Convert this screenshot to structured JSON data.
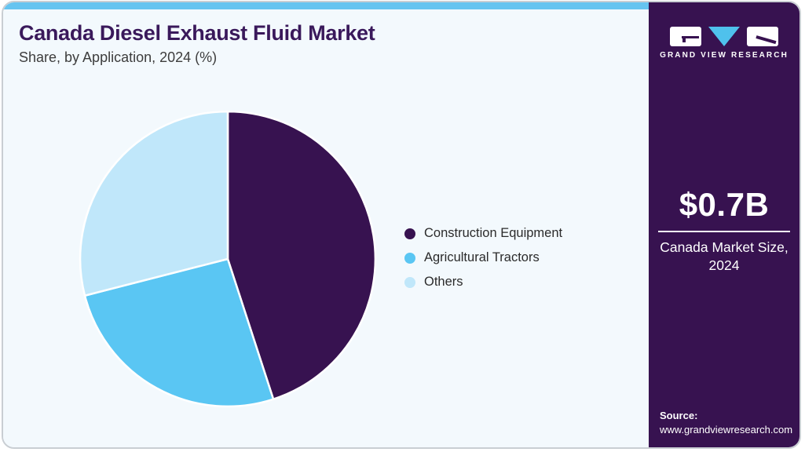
{
  "header": {
    "title": "Canada Diesel Exhaust Fluid Market",
    "subtitle": "Share, by Application, 2024 (%)"
  },
  "chart_data": {
    "type": "pie",
    "title": "Canada Diesel Exhaust Fluid Market Share, by Application, 2024 (%)",
    "units": "%",
    "start_angle_deg": 0,
    "direction": "clockwise",
    "legend_position": "right",
    "slices": [
      {
        "label": "Construction Equipment",
        "value": 45,
        "color": "#371250"
      },
      {
        "label": "Agricultural Tractors",
        "value": 26,
        "color": "#5ac6f3"
      },
      {
        "label": "Others",
        "value": 29,
        "color": "#c0e7fa"
      }
    ]
  },
  "sidebar": {
    "logo": {
      "brand": "GRAND VIEW RESEARCH",
      "triangle_color": "#4fc1ec"
    },
    "market_size_value": "$0.7B",
    "market_size_label": "Canada Market Size, 2024",
    "source_label": "Source:",
    "source_url": "www.grandviewresearch.com"
  },
  "colors": {
    "accent_topbar": "#66c4f0",
    "card_background": "#f3f9fd",
    "sidebar_background": "#371250",
    "title_text": "#3a195b",
    "border": "#c9ced3"
  }
}
